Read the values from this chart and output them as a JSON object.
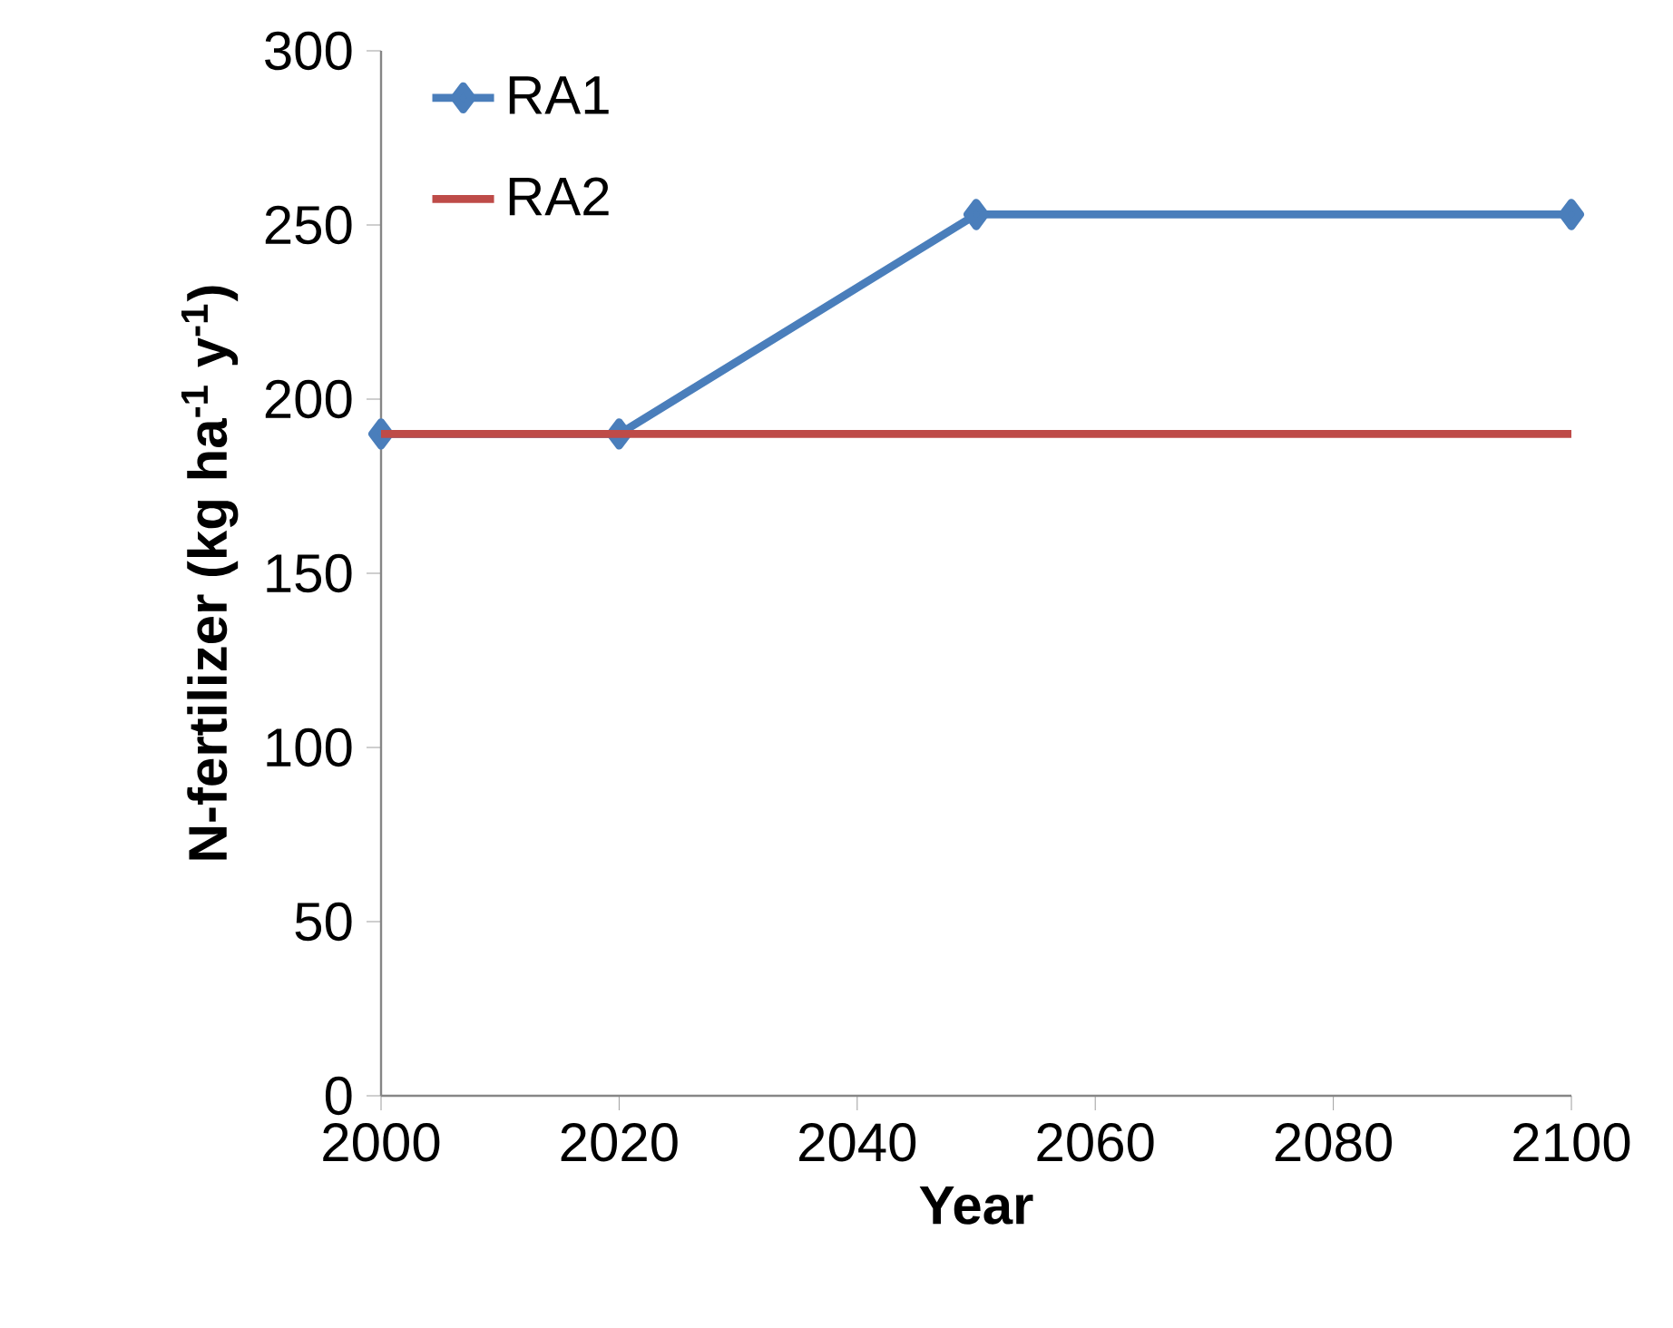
{
  "chart_data": {
    "type": "line",
    "xlabel": "Year",
    "ylabel": "N-fertilizer (kg ha$^{-1}$ y$^{-1}$)",
    "xlim": [
      2000,
      2100
    ],
    "xticks": [
      2000,
      2020,
      2040,
      2060,
      2080,
      2100
    ],
    "ylim": [
      0,
      300
    ],
    "yticks": [
      0,
      50,
      100,
      150,
      200,
      250,
      300
    ],
    "grid": false,
    "legend": "top left",
    "line_style": "solid",
    "series": [
      {
        "name": "RA1",
        "color": "#4a7ebb",
        "marker": "diamond",
        "x": [
          2000,
          2020,
          2050,
          2100
        ],
        "values": [
          190,
          190,
          253,
          253
        ]
      },
      {
        "name": "RA2",
        "color": "#be4b48",
        "marker": "none",
        "x": [
          2000,
          2100
        ],
        "values": [
          190,
          190
        ]
      }
    ]
  }
}
